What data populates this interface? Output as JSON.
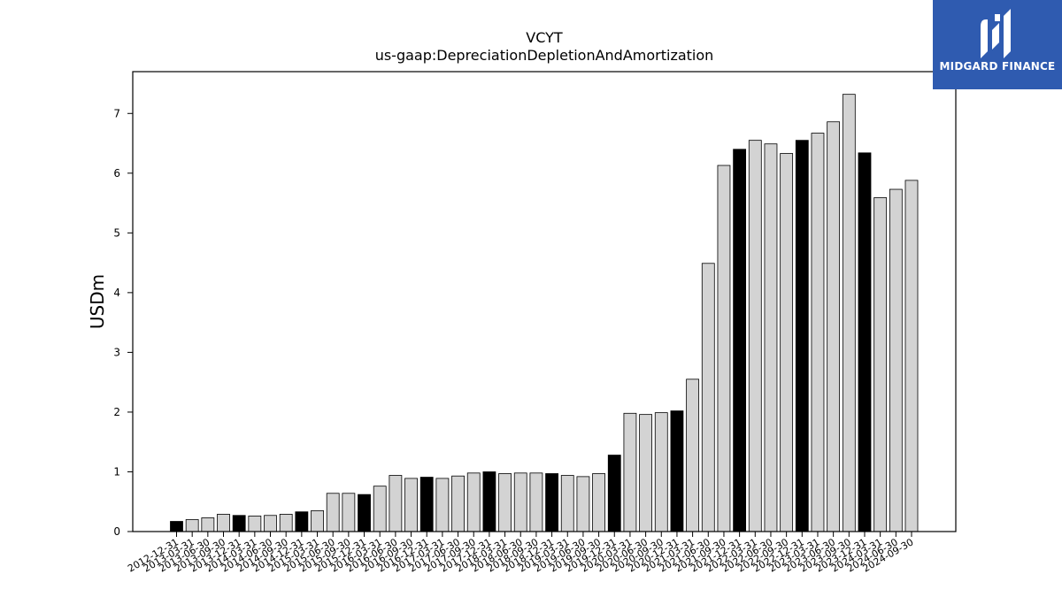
{
  "brand": {
    "name": "MIDGARD FINANCE",
    "bg_color": "#2f5bb0"
  },
  "chart_data": {
    "type": "bar",
    "title": "VCYT",
    "subtitle": "us-gaap:DepreciationDepletionAndAmortization",
    "xlabel": "",
    "ylabel": "USDm",
    "ylim": [
      0,
      7.7
    ],
    "yticks": [
      0,
      1,
      2,
      3,
      4,
      5,
      6,
      7
    ],
    "grid": false,
    "colors": {
      "annual": "#000000",
      "quarter": "#d3d3d3",
      "edge": "#000000"
    },
    "categories": [
      "2012-12-31",
      "2013-03-31",
      "2013-06-30",
      "2013-09-30",
      "2013-12-31",
      "2014-03-31",
      "2014-06-30",
      "2014-09-30",
      "2014-12-31",
      "2015-03-31",
      "2015-06-30",
      "2015-09-30",
      "2015-12-31",
      "2016-03-31",
      "2016-06-30",
      "2016-09-30",
      "2016-12-31",
      "2017-03-31",
      "2017-06-30",
      "2017-09-30",
      "2017-12-31",
      "2018-03-31",
      "2018-06-30",
      "2018-09-30",
      "2018-12-31",
      "2019-03-31",
      "2019-06-30",
      "2019-09-30",
      "2019-12-31",
      "2020-03-31",
      "2020-06-30",
      "2020-09-30",
      "2020-12-31",
      "2021-03-31",
      "2021-06-30",
      "2021-09-30",
      "2021-12-31",
      "2022-03-31",
      "2022-06-30",
      "2022-09-30",
      "2022-12-31",
      "2023-03-31",
      "2023-06-30",
      "2023-09-30",
      "2023-12-31",
      "2024-03-31",
      "2024-06-30",
      "2024-09-30"
    ],
    "values": [
      0.17,
      0.2,
      0.23,
      0.29,
      0.27,
      0.26,
      0.27,
      0.29,
      0.33,
      0.35,
      0.64,
      0.64,
      0.62,
      0.76,
      0.94,
      0.89,
      0.91,
      0.89,
      0.93,
      0.98,
      1.0,
      0.97,
      0.98,
      0.98,
      0.97,
      0.94,
      0.92,
      0.97,
      1.28,
      1.98,
      1.96,
      1.99,
      2.02,
      2.55,
      4.49,
      6.13,
      6.4,
      6.55,
      6.49,
      6.33,
      6.55,
      6.67,
      6.86,
      7.32,
      6.34,
      5.59,
      5.73,
      5.88
    ],
    "annual": [
      true,
      false,
      false,
      false,
      true,
      false,
      false,
      false,
      true,
      false,
      false,
      false,
      true,
      false,
      false,
      false,
      true,
      false,
      false,
      false,
      true,
      false,
      false,
      false,
      true,
      false,
      false,
      false,
      true,
      false,
      false,
      false,
      true,
      false,
      false,
      false,
      true,
      false,
      false,
      false,
      true,
      false,
      false,
      false,
      true,
      false,
      false,
      false
    ]
  }
}
